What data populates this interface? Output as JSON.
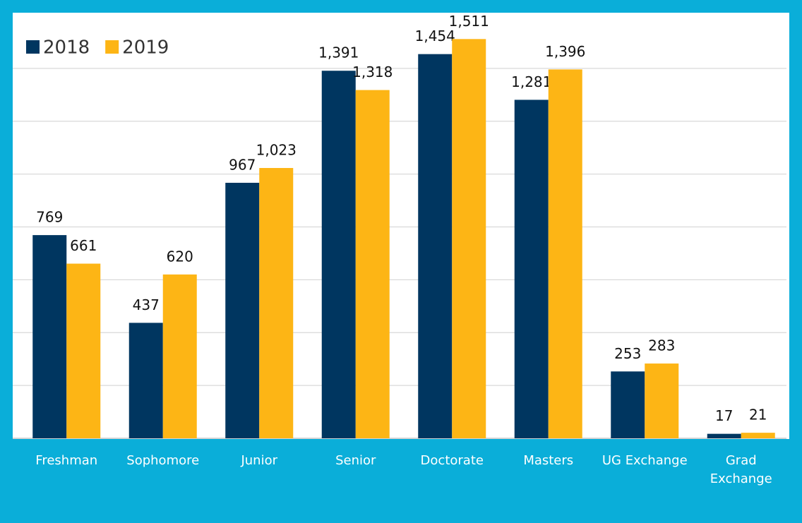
{
  "chart_data": {
    "type": "bar",
    "categories": [
      "Freshman",
      "Sophomore",
      "Junior",
      "Senior",
      "Doctorate",
      "Masters",
      "UG Exchange",
      "Grad Exchange"
    ],
    "series": [
      {
        "name": "2018",
        "color": "#003660",
        "values": [
          769,
          437,
          967,
          1391,
          1454,
          1281,
          253,
          17
        ],
        "value_labels": [
          "769",
          "437",
          "967",
          "1,391",
          "1,454",
          "1,281",
          "253",
          "17"
        ]
      },
      {
        "name": "2019",
        "color": "#fdb515",
        "values": [
          661,
          620,
          1023,
          1318,
          1511,
          1396,
          283,
          21
        ],
        "value_labels": [
          "661",
          "620",
          "1,023",
          "1,318",
          "1,511",
          "1,396",
          "283",
          "21"
        ]
      }
    ],
    "ylim": [
      0,
      1600
    ],
    "yticks": [
      0,
      200,
      400,
      600,
      800,
      1000,
      1200,
      1400
    ],
    "grid": true,
    "legend": "top-left"
  }
}
